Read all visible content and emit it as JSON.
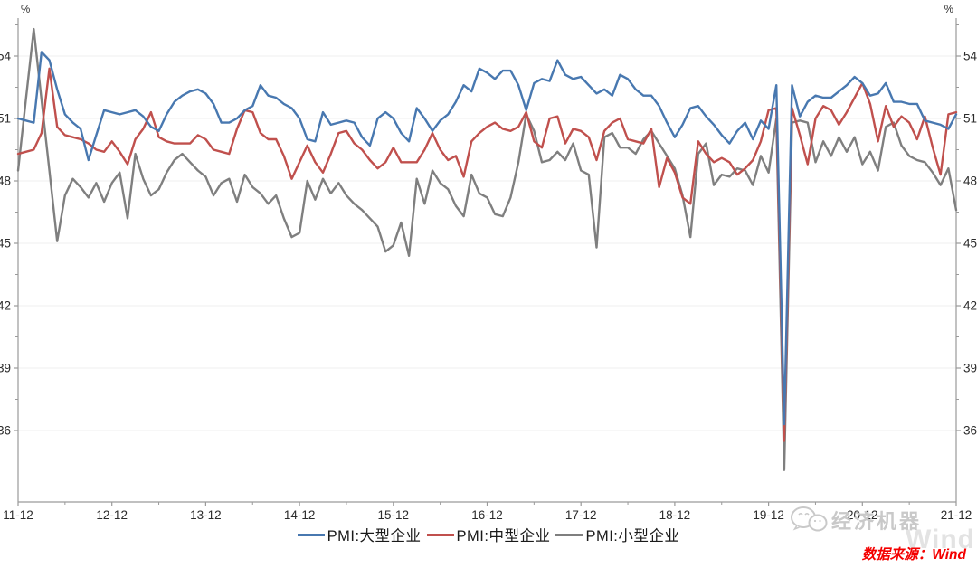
{
  "chart_data": {
    "type": "line",
    "title": "",
    "unit_label": "%",
    "x_labels": [
      "11-12",
      "12-12",
      "13-12",
      "14-12",
      "15-12",
      "16-12",
      "17-12",
      "18-12",
      "19-12",
      "20-12",
      "21-12"
    ],
    "y_ticks": [
      54,
      51,
      48,
      45,
      42,
      39,
      36
    ],
    "ylim": [
      32.5,
      55.8
    ],
    "grid": "horizontal-faint",
    "legend_position": "bottom-center",
    "x_start": "2011-12",
    "x_end": "2021-12",
    "series": [
      {
        "name": "PMI:大型企业",
        "color": "#4878b0",
        "values": [
          51.0,
          50.9,
          50.8,
          54.2,
          53.8,
          52.4,
          51.2,
          50.8,
          50.5,
          49.0,
          50.2,
          51.4,
          51.3,
          51.2,
          51.3,
          51.4,
          51.1,
          50.6,
          50.4,
          51.2,
          51.8,
          52.1,
          52.3,
          52.4,
          52.2,
          51.7,
          50.8,
          50.8,
          51.0,
          51.4,
          51.6,
          52.6,
          52.1,
          52.0,
          51.7,
          51.5,
          51.0,
          50.0,
          49.9,
          51.3,
          50.7,
          50.8,
          50.9,
          50.8,
          50.1,
          49.7,
          51.0,
          51.3,
          51.0,
          50.3,
          49.9,
          51.5,
          51.0,
          50.4,
          50.9,
          51.2,
          51.8,
          52.6,
          52.3,
          53.4,
          53.2,
          52.9,
          53.3,
          53.3,
          52.6,
          51.4,
          52.7,
          52.9,
          52.8,
          53.8,
          53.1,
          52.9,
          53.0,
          52.6,
          52.2,
          52.4,
          52.1,
          53.1,
          52.9,
          52.4,
          52.1,
          52.1,
          51.6,
          50.8,
          50.1,
          50.7,
          51.5,
          51.6,
          51.1,
          50.7,
          50.2,
          49.8,
          50.4,
          50.8,
          50.0,
          50.9,
          50.5,
          52.6,
          36.3,
          52.6,
          51.1,
          51.8,
          52.1,
          52.0,
          52.0,
          52.3,
          52.6,
          53.0,
          52.7,
          52.1,
          52.2,
          52.7,
          51.8,
          51.8,
          51.7,
          51.7,
          50.9,
          50.8,
          50.7,
          50.5,
          51.2
        ]
      },
      {
        "name": "PMI:中型企业",
        "color": "#c0504d",
        "values": [
          49.3,
          49.4,
          49.5,
          50.3,
          53.4,
          50.6,
          50.2,
          50.1,
          50.0,
          49.8,
          49.5,
          49.4,
          49.9,
          49.4,
          48.8,
          50.0,
          50.5,
          51.3,
          50.1,
          49.9,
          49.8,
          49.8,
          49.8,
          50.2,
          50.0,
          49.5,
          49.4,
          49.3,
          50.5,
          51.4,
          51.3,
          50.3,
          50.0,
          50.0,
          49.2,
          48.1,
          48.9,
          49.7,
          48.9,
          48.4,
          49.3,
          50.3,
          50.4,
          49.8,
          49.5,
          49.0,
          48.6,
          48.9,
          49.6,
          48.9,
          48.9,
          48.9,
          49.5,
          50.3,
          49.5,
          49.0,
          49.2,
          48.2,
          49.9,
          50.3,
          50.6,
          50.8,
          50.5,
          50.4,
          50.6,
          51.3,
          49.9,
          49.6,
          51.0,
          51.1,
          49.8,
          50.5,
          50.4,
          50.1,
          49.0,
          50.4,
          50.8,
          51.0,
          50.0,
          49.9,
          49.8,
          50.5,
          47.7,
          49.1,
          48.4,
          47.2,
          46.9,
          49.9,
          49.3,
          48.9,
          49.1,
          48.9,
          48.3,
          48.6,
          49.0,
          49.9,
          51.4,
          51.5,
          35.5,
          51.5,
          50.2,
          48.8,
          51.0,
          51.6,
          51.4,
          50.7,
          51.3,
          52.0,
          52.7,
          51.7,
          49.9,
          51.6,
          50.6,
          51.1,
          50.8,
          50.0,
          51.1,
          49.6,
          48.3,
          51.2,
          51.3
        ]
      },
      {
        "name": "PMI:小型企业",
        "color": "#7f7f7f",
        "values": [
          48.5,
          51.9,
          55.3,
          51.9,
          48.5,
          45.1,
          47.3,
          48.1,
          47.7,
          47.2,
          47.9,
          47.0,
          47.9,
          48.4,
          46.2,
          49.3,
          48.1,
          47.3,
          47.6,
          48.4,
          49.0,
          49.3,
          48.9,
          48.5,
          48.2,
          47.3,
          47.9,
          48.1,
          47.0,
          48.3,
          47.7,
          47.4,
          46.9,
          47.3,
          46.2,
          45.3,
          45.5,
          48.0,
          47.1,
          48.1,
          47.4,
          47.9,
          47.3,
          46.9,
          46.6,
          46.2,
          45.8,
          44.6,
          44.9,
          46.0,
          44.4,
          48.1,
          46.9,
          48.5,
          47.9,
          47.6,
          46.8,
          46.3,
          48.3,
          47.4,
          47.2,
          46.4,
          46.3,
          47.2,
          48.9,
          51.2,
          50.4,
          48.9,
          49.0,
          49.4,
          49.0,
          49.8,
          48.5,
          48.3,
          44.8,
          50.1,
          50.3,
          49.6,
          49.6,
          49.3,
          50.0,
          50.4,
          49.8,
          49.2,
          48.6,
          47.3,
          45.3,
          49.3,
          49.8,
          47.8,
          48.3,
          48.2,
          48.6,
          48.5,
          47.8,
          49.2,
          48.4,
          51.0,
          34.1,
          50.8,
          50.9,
          50.8,
          48.9,
          49.9,
          49.2,
          50.1,
          49.4,
          50.1,
          48.8,
          49.4,
          48.5,
          50.6,
          50.8,
          49.7,
          49.2,
          49.0,
          48.9,
          48.4,
          47.8,
          48.6,
          46.6
        ]
      }
    ]
  },
  "footer": {
    "source_label": "数据来源：Wind",
    "watermark_text": "经济机器",
    "watermark_wind": "Wind"
  }
}
